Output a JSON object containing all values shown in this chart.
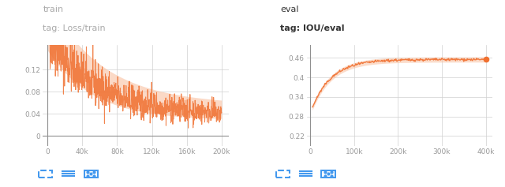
{
  "left_title1": "train",
  "left_title2": "tag: Loss/train",
  "right_title1": "eval",
  "right_title2": "tag: IOU/eval",
  "left_xlabel_ticks": [
    0,
    40000,
    80000,
    120000,
    160000,
    200000
  ],
  "left_xlabel_labels": [
    "0",
    "40k",
    "80k",
    "120k",
    "160k",
    "200k"
  ],
  "left_ylim": [
    -0.018,
    0.165
  ],
  "left_yticks": [
    0,
    0.04,
    0.08,
    0.12
  ],
  "right_xlabel_ticks": [
    0,
    100000,
    200000,
    300000,
    400000
  ],
  "right_xlabel_labels": [
    "0",
    "100k",
    "200k",
    "300k",
    "400k"
  ],
  "right_ylim": [
    0.19,
    0.5
  ],
  "right_yticks": [
    0.22,
    0.28,
    0.34,
    0.4,
    0.46
  ],
  "orange_main": "#f07030",
  "orange_light": "#f9c0a0",
  "bg_color": "#ffffff",
  "grid_color": "#d0d0d0",
  "title_color_left": "#aaaaaa",
  "title_color_right": "#333333",
  "axis_label_color": "#999999",
  "icon_color": "#4499ee"
}
